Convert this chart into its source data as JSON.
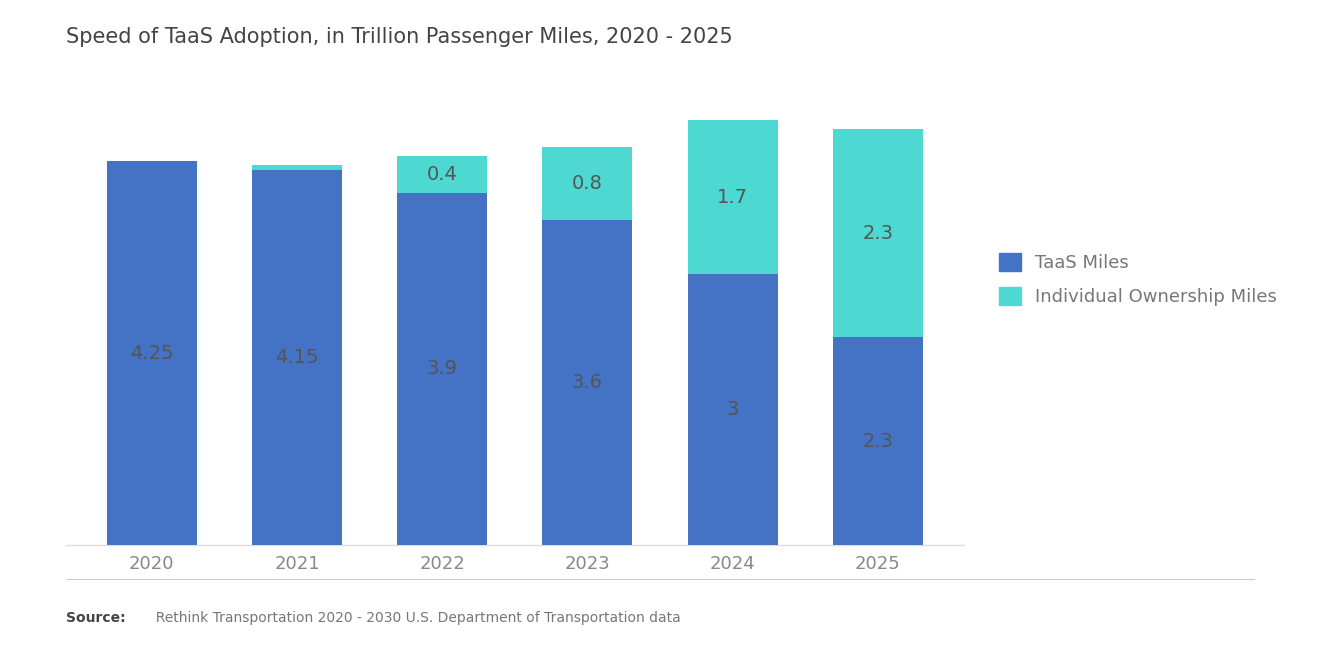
{
  "title": "Speed of TaaS Adoption, in Trillion Passenger Miles, 2020 - 2025",
  "years": [
    "2020",
    "2021",
    "2022",
    "2023",
    "2024",
    "2025"
  ],
  "taas_miles": [
    4.25,
    4.15,
    3.9,
    3.6,
    3.0,
    2.3
  ],
  "taas_labels": [
    "4.25",
    "4.15",
    "3.9",
    "3.6",
    "3",
    "2.3"
  ],
  "individual_miles": [
    0.0,
    0.05,
    0.4,
    0.8,
    1.7,
    2.3
  ],
  "individual_labels": [
    "",
    "",
    "0.4",
    "0.8",
    "1.7",
    "2.3"
  ],
  "taas_color": "#4472C4",
  "individual_color": "#4DD9D2",
  "background_color": "#FFFFFF",
  "bar_width": 0.62,
  "title_fontsize": 15,
  "label_fontsize": 14,
  "tick_fontsize": 13,
  "legend_fontsize": 13,
  "source_bold": "Source:",
  "source_rest": "  Rethink Transportation 2020 - 2030 U.S. Department of Transportation data",
  "legend_labels": [
    "TaaS Miles",
    "Individual Ownership Miles"
  ],
  "ylim": [
    0,
    5.0
  ],
  "label_color": "#555555"
}
